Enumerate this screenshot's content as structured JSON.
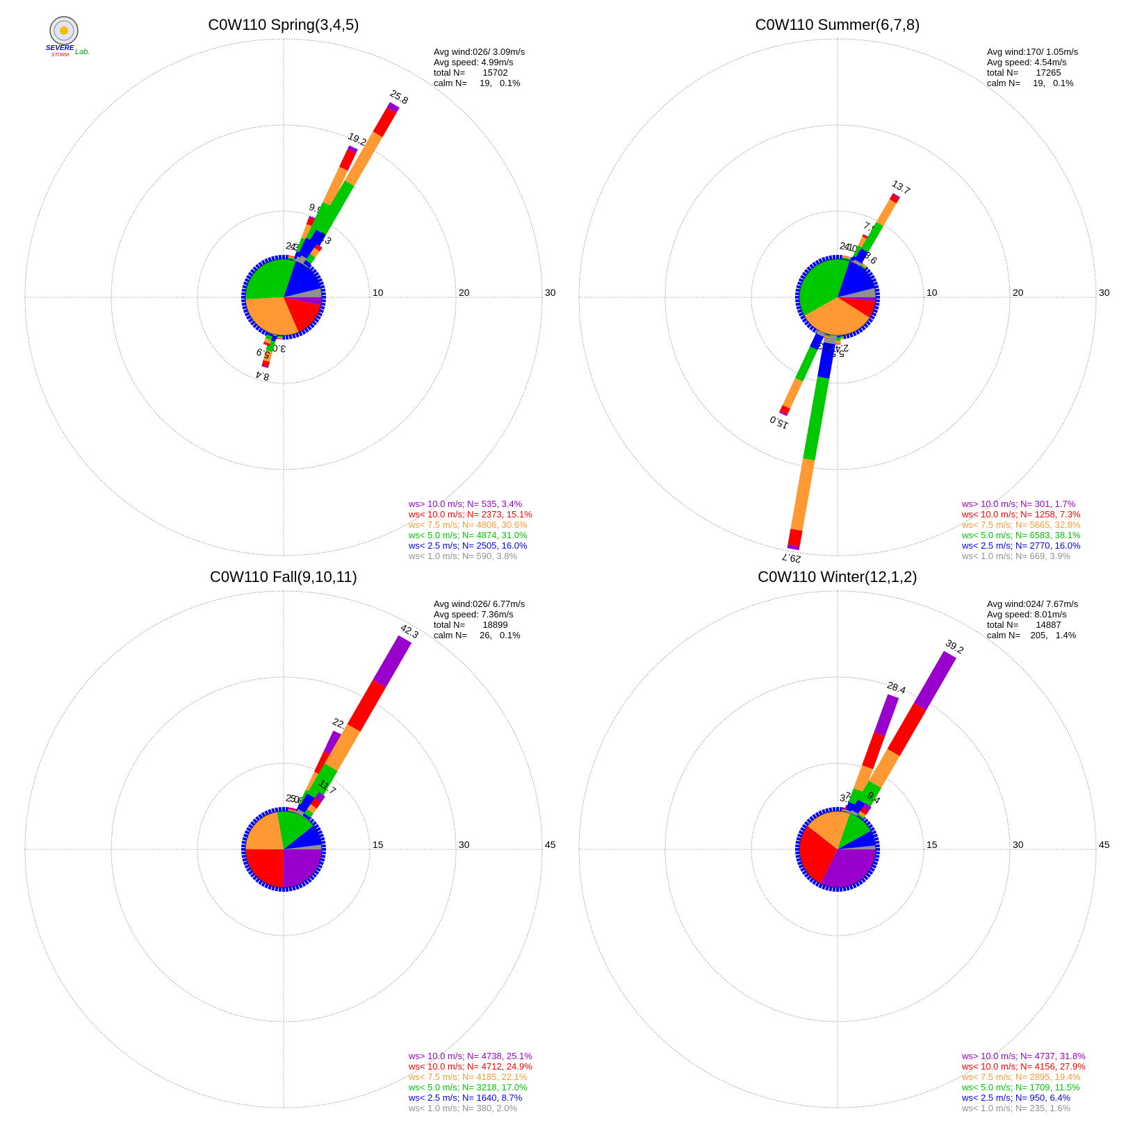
{
  "logo": {
    "text_top": "SEVERE",
    "text_bottom": "STORM",
    "text_lab": "Lab."
  },
  "colors": {
    "gray": "#909090",
    "blue": "#0000ff",
    "green": "#00c800",
    "orange": "#ff9933",
    "red": "#ff0000",
    "purple": "#9900cc"
  },
  "chart_data": [
    {
      "type": "wind-rose",
      "title": "C0W110 Spring(3,4,5)",
      "rmax": 30,
      "ring_labels": [
        "10",
        "20",
        "30"
      ],
      "stats": [
        "Avg wind:026/ 3.09m/s",
        "Avg speed: 4.99m/s",
        "total N=       15702",
        "calm N=     19,   0.1%"
      ],
      "legend": [
        {
          "text": "ws> 10.0 m/s; N=   535,  3.4%",
          "color": "#9900cc"
        },
        {
          "text": "ws< 10.0 m/s; N=  2373, 15.1%",
          "color": "#ff0000"
        },
        {
          "text": "ws<  7.5 m/s; N=  4806, 30.6%",
          "color": "#ff9933"
        },
        {
          "text": "ws<  5.0 m/s; N=  4874, 31.0%",
          "color": "#00c800"
        },
        {
          "text": "ws<  2.5 m/s; N=  2505, 16.0%",
          "color": "#0000ff"
        },
        {
          "text": "ws<  1.0 m/s; N=   590,  3.8%",
          "color": "#909090"
        }
      ],
      "class_pct": [
        3.8,
        16.0,
        31.0,
        30.6,
        15.1,
        3.4
      ],
      "bars": [
        {
          "dir": 10,
          "total": 2.3,
          "label": "2.3"
        },
        {
          "dir": 15,
          "total": 4.4,
          "label": "4.4"
        },
        {
          "dir": 20,
          "total": 9.9,
          "label": "9.9"
        },
        {
          "dir": 25,
          "total": 19.2,
          "label": "19.2"
        },
        {
          "dir": 30,
          "total": 25.8,
          "label": "25.8"
        },
        {
          "dir": 35,
          "total": 7.3,
          "label": "7.3"
        },
        {
          "dir": 185,
          "total": 3.0,
          "label": "3.0"
        },
        {
          "dir": 195,
          "total": 8.4,
          "label": "8.4"
        },
        {
          "dir": 200,
          "total": 5.9,
          "label": "5.9"
        }
      ]
    },
    {
      "type": "wind-rose",
      "title": "C0W110 Summer(6,7,8)",
      "rmax": 30,
      "ring_labels": [
        "10",
        "20",
        "30"
      ],
      "stats": [
        "Avg wind:170/ 1.05m/s",
        "Avg speed: 4.54m/s",
        "total N=       17265",
        "calm N=     19,   0.1%"
      ],
      "legend": [
        {
          "text": "ws> 10.0 m/s; N=   301,  1.7%",
          "color": "#9900cc"
        },
        {
          "text": "ws< 10.0 m/s; N=  1258,  7.3%",
          "color": "#ff0000"
        },
        {
          "text": "ws<  7.5 m/s; N=  5665, 32.8%",
          "color": "#ff9933"
        },
        {
          "text": "ws<  5.0 m/s; N=  6583, 38.1%",
          "color": "#00c800"
        },
        {
          "text": "ws<  2.5 m/s; N=  2770, 16.0%",
          "color": "#0000ff"
        },
        {
          "text": "ws<  1.0 m/s; N=   669,  3.9%",
          "color": "#909090"
        }
      ],
      "class_pct": [
        3.9,
        16.0,
        38.1,
        32.8,
        7.3,
        1.7
      ],
      "bars": [
        {
          "dir": 10,
          "total": 2.1,
          "label": "2.1"
        },
        {
          "dir": 15,
          "total": 4.0,
          "label": "4.0"
        },
        {
          "dir": 25,
          "total": 7.9,
          "label": "7.9"
        },
        {
          "dir": 30,
          "total": 13.7,
          "label": "13.7"
        },
        {
          "dir": 40,
          "total": 3.6,
          "label": "3.6"
        },
        {
          "dir": 175,
          "total": 2.4,
          "label": "2.4"
        },
        {
          "dir": 180,
          "total": 5.5,
          "label": "5.5"
        },
        {
          "dir": 190,
          "total": 29.7,
          "label": "29.7"
        },
        {
          "dir": 195,
          "total": 2.3,
          "label": "2.3"
        },
        {
          "dir": 205,
          "total": 15.0,
          "label": "15.0"
        }
      ]
    },
    {
      "type": "wind-rose",
      "title": "C0W110 Fall(9,10,11)",
      "rmax": 45,
      "ring_labels": [
        "15",
        "30",
        "45"
      ],
      "stats": [
        "Avg wind:026/ 6.77m/s",
        "Avg speed: 7.36m/s",
        "total N=       18899",
        "calm N=     26,   0.1%"
      ],
      "legend": [
        {
          "text": "ws> 10.0 m/s; N=  4738, 25.1%",
          "color": "#9900cc"
        },
        {
          "text": "ws< 10.0 m/s; N=  4712, 24.9%",
          "color": "#ff0000"
        },
        {
          "text": "ws<  7.5 m/s; N=  4185, 22.1%",
          "color": "#ff9933"
        },
        {
          "text": "ws<  5.0 m/s; N=  3218, 17.0%",
          "color": "#00c800"
        },
        {
          "text": "ws<  2.5 m/s; N=  1640,  8.7%",
          "color": "#0000ff"
        },
        {
          "text": "ws<  1.0 m/s; N=   380,  2.0%",
          "color": "#909090"
        }
      ],
      "class_pct": [
        2.0,
        8.7,
        17.0,
        22.1,
        24.9,
        25.1
      ],
      "bars": [
        {
          "dir": 10,
          "total": 2.0,
          "label": "2.0"
        },
        {
          "dir": 15,
          "total": 5.8,
          "label": "5.8"
        },
        {
          "dir": 25,
          "total": 22.4,
          "label": "22.4"
        },
        {
          "dir": 30,
          "total": 42.3,
          "label": "42.3"
        },
        {
          "dir": 35,
          "total": 11.7,
          "label": "11.7"
        }
      ]
    },
    {
      "type": "wind-rose",
      "title": "C0W110 Winter(12,1,2)",
      "rmax": 45,
      "ring_labels": [
        "15",
        "30",
        "45"
      ],
      "stats": [
        "Avg wind:024/ 7.67m/s",
        "Avg speed: 8.01m/s",
        "total N=       14887",
        "calm N=    205,   1.4%"
      ],
      "legend": [
        {
          "text": "ws> 10.0 m/s; N=  4737, 31.8%",
          "color": "#9900cc"
        },
        {
          "text": "ws< 10.0 m/s; N=  4156, 27.9%",
          "color": "#ff0000"
        },
        {
          "text": "ws<  7.5 m/s; N=  2895, 19.4%",
          "color": "#ff9933"
        },
        {
          "text": "ws<  5.0 m/s; N=  1709, 11.5%",
          "color": "#00c800"
        },
        {
          "text": "ws<  2.5 m/s; N=   950,  6.4%",
          "color": "#0000ff"
        },
        {
          "text": "ws<  1.0 m/s; N=   235,  1.6%",
          "color": "#909090"
        }
      ],
      "class_pct": [
        1.6,
        6.4,
        11.5,
        19.4,
        27.9,
        31.8
      ],
      "bars": [
        {
          "dir": 10,
          "total": 3.2,
          "label": "3.2"
        },
        {
          "dir": 15,
          "total": 7.9,
          "label": "7.9"
        },
        {
          "dir": 20,
          "total": 28.4,
          "label": "28.4"
        },
        {
          "dir": 30,
          "total": 39.2,
          "label": "39.2"
        },
        {
          "dir": 35,
          "total": 9.4,
          "label": "9.4"
        }
      ]
    }
  ]
}
